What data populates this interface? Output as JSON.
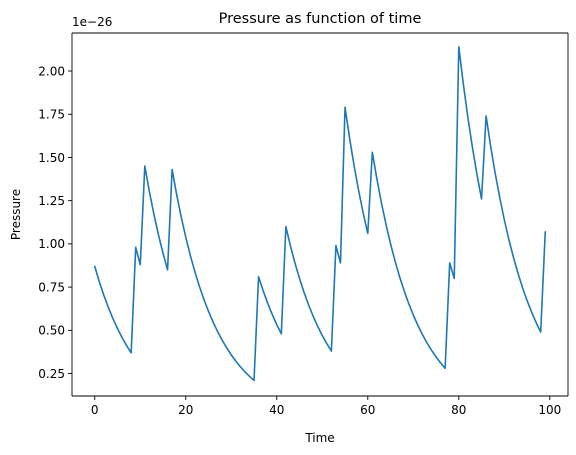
{
  "chart_data": {
    "type": "line",
    "title": "Pressure as function of time",
    "xlabel": "Time",
    "ylabel": "Pressure",
    "y_offset_label": "1e−26",
    "xlim": [
      -5,
      104
    ],
    "ylim": [
      0.12,
      2.22
    ],
    "x_ticks": [
      0,
      20,
      40,
      60,
      80,
      100
    ],
    "x_tick_labels": [
      "0",
      "20",
      "40",
      "60",
      "80",
      "100"
    ],
    "y_ticks": [
      0.25,
      0.5,
      0.75,
      1.0,
      1.25,
      1.5,
      1.75,
      2.0
    ],
    "y_tick_labels": [
      "0.25",
      "0.50",
      "0.75",
      "1.00",
      "1.25",
      "1.50",
      "1.75",
      "2.00"
    ],
    "grid": false,
    "line_color": "#1f77b4",
    "series": [
      {
        "segments": [
          {
            "x0": 0,
            "x1": 8,
            "y0": 0.87,
            "y1": 0.37
          },
          {
            "x0": 9,
            "x1": 10,
            "y0": 0.98,
            "y1": 0.88
          },
          {
            "x0": 11,
            "x1": 16,
            "y0": 1.45,
            "y1": 0.85
          },
          {
            "x0": 17,
            "x1": 35,
            "y0": 1.43,
            "y1": 0.21
          },
          {
            "x0": 36,
            "x1": 41,
            "y0": 0.81,
            "y1": 0.48
          },
          {
            "x0": 42,
            "x1": 52,
            "y0": 1.1,
            "y1": 0.38
          },
          {
            "x0": 53,
            "x1": 54,
            "y0": 0.99,
            "y1": 0.89
          },
          {
            "x0": 55,
            "x1": 60,
            "y0": 1.79,
            "y1": 1.06
          },
          {
            "x0": 61,
            "x1": 77,
            "y0": 1.53,
            "y1": 0.28
          },
          {
            "x0": 78,
            "x1": 79,
            "y0": 0.89,
            "y1": 0.8
          },
          {
            "x0": 80,
            "x1": 85,
            "y0": 2.14,
            "y1": 1.26
          },
          {
            "x0": 86,
            "x1": 98,
            "y0": 1.74,
            "y1": 0.49
          },
          {
            "x0": 99,
            "x1": 99,
            "y0": 1.07,
            "y1": 1.07
          }
        ]
      }
    ]
  }
}
